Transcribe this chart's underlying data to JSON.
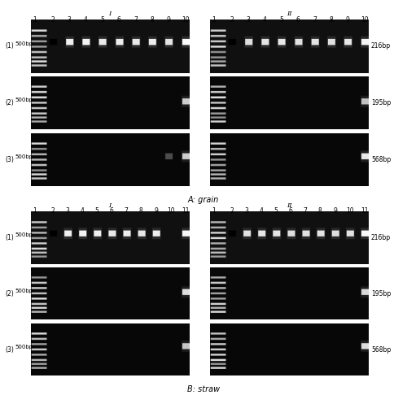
{
  "figure_bg": "#ffffff",
  "gel_bg_dark": 0.07,
  "gel_bg_row1": 0.07,
  "title_A": "A: grain",
  "title_B": "B: straw",
  "size_labels_A": [
    "216bp",
    "195bp",
    "568bp"
  ],
  "size_labels_B": [
    "216bp",
    "195bp",
    "568bp"
  ],
  "row_labels": [
    "(1)",
    "(2)",
    "(3)"
  ],
  "marker_label": "500bp",
  "font_size_lane": 5.5,
  "font_size_label": 5.5,
  "font_size_title": 7,
  "font_size_roman": 6,
  "font_size_marker": 5,
  "panel_border_color": "#cccccc"
}
